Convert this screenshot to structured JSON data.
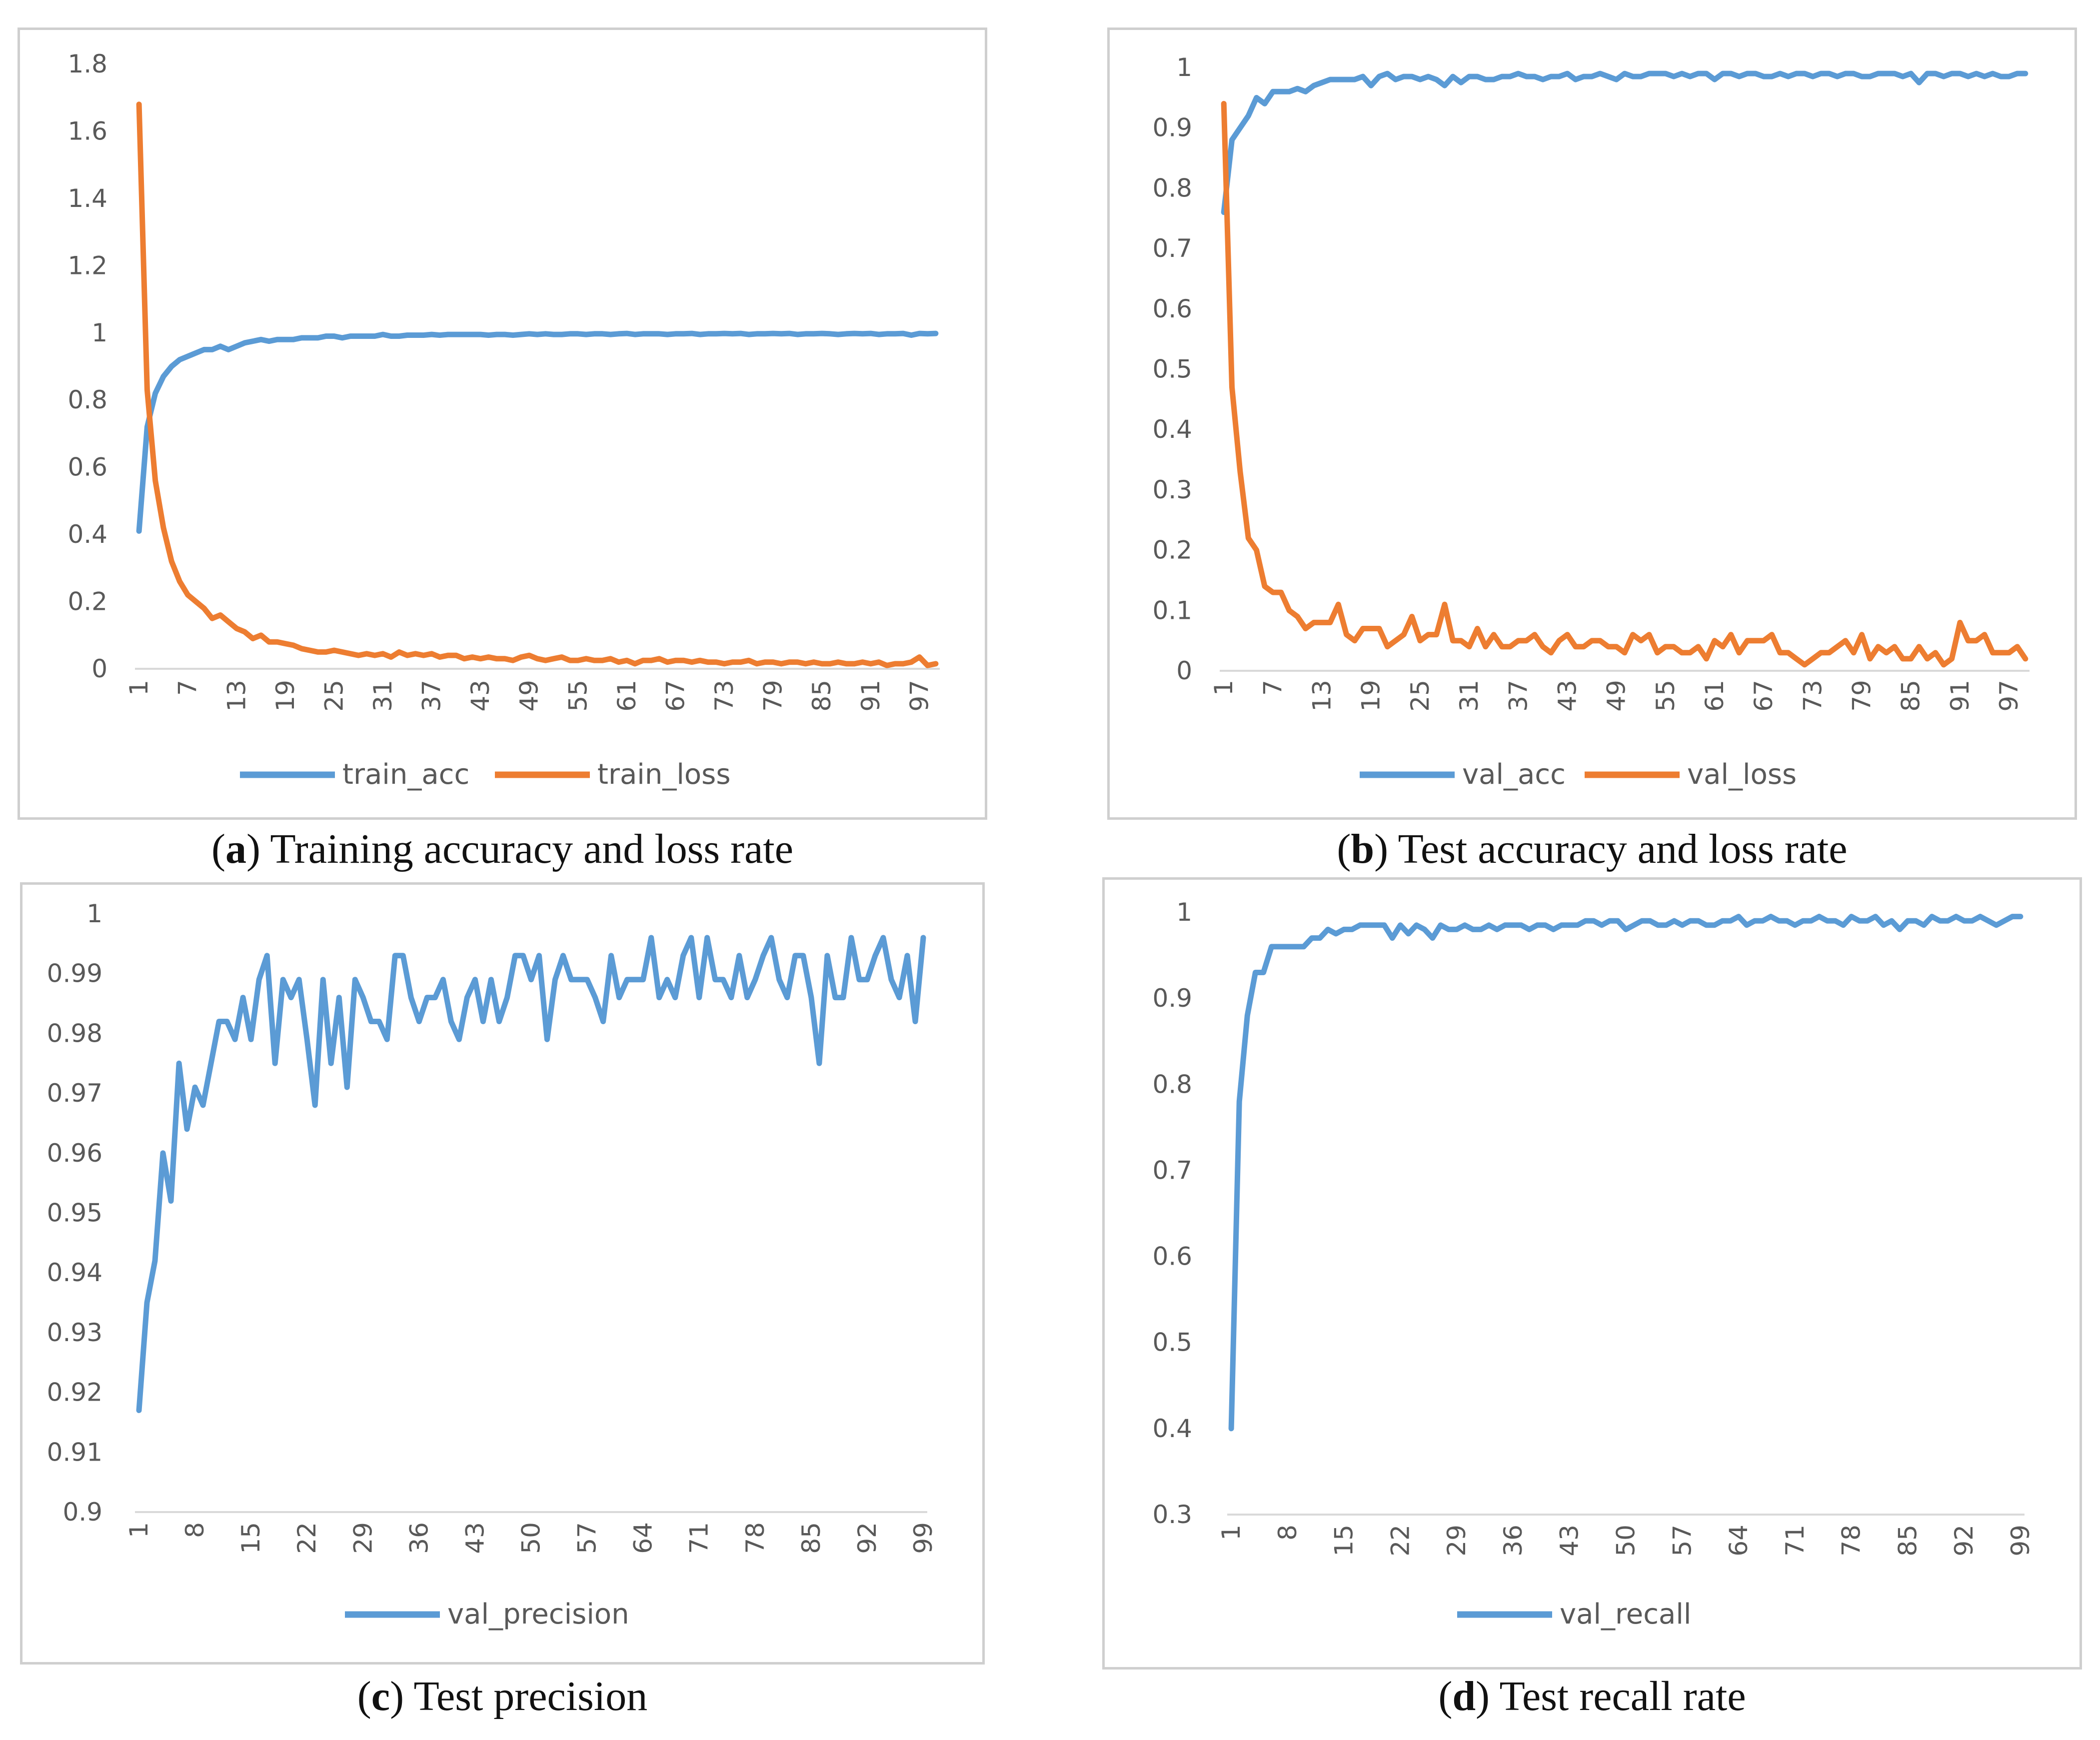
{
  "colors": {
    "blue": "#5b9bd5",
    "orange": "#ed7d31",
    "axis": "#d9d9d9",
    "text": "#595959"
  },
  "captions": {
    "a": {
      "letter": "a",
      "text": " Training accuracy and loss rate"
    },
    "b": {
      "letter": "b",
      "text": " Test accuracy and loss rate"
    },
    "c": {
      "letter": "c",
      "text": " Test precision"
    },
    "d": {
      "letter": "d",
      "text": " Test recall rate"
    }
  },
  "chart_data": [
    {
      "id": "a",
      "type": "line",
      "title": "Training accuracy and loss rate",
      "ylim": [
        0,
        1.8
      ],
      "yticks": [
        "0",
        "0.2",
        "0.4",
        "0.6",
        "0.8",
        "1",
        "1.2",
        "1.4",
        "1.6",
        "1.8"
      ],
      "xticks": [
        "1",
        "7",
        "13",
        "19",
        "25",
        "31",
        "37",
        "43",
        "49",
        "55",
        "61",
        "67",
        "73",
        "79",
        "85",
        "91",
        "97"
      ],
      "xtick_start": 1,
      "xtick_step": 6,
      "n": 99,
      "series": [
        {
          "name": "train_acc",
          "color": "blue",
          "values": [
            0.41,
            0.72,
            0.82,
            0.87,
            0.9,
            0.92,
            0.93,
            0.94,
            0.95,
            0.95,
            0.96,
            0.95,
            0.96,
            0.97,
            0.975,
            0.98,
            0.975,
            0.98,
            0.98,
            0.98,
            0.985,
            0.985,
            0.985,
            0.99,
            0.99,
            0.985,
            0.99,
            0.99,
            0.99,
            0.99,
            0.995,
            0.99,
            0.99,
            0.993,
            0.993,
            0.993,
            0.995,
            0.993,
            0.995,
            0.995,
            0.995,
            0.995,
            0.995,
            0.993,
            0.995,
            0.995,
            0.993,
            0.995,
            0.997,
            0.995,
            0.997,
            0.995,
            0.995,
            0.997,
            0.997,
            0.995,
            0.997,
            0.997,
            0.995,
            0.997,
            0.998,
            0.995,
            0.997,
            0.997,
            0.997,
            0.995,
            0.997,
            0.997,
            0.998,
            0.995,
            0.997,
            0.997,
            0.998,
            0.997,
            0.998,
            0.995,
            0.997,
            0.997,
            0.998,
            0.997,
            0.998,
            0.995,
            0.997,
            0.997,
            0.998,
            0.997,
            0.995,
            0.997,
            0.998,
            0.997,
            0.998,
            0.995,
            0.997,
            0.997,
            0.998,
            0.993,
            0.998,
            0.997,
            0.998
          ]
        },
        {
          "name": "train_loss",
          "color": "orange",
          "values": [
            1.68,
            0.83,
            0.56,
            0.42,
            0.32,
            0.26,
            0.22,
            0.2,
            0.18,
            0.15,
            0.16,
            0.14,
            0.12,
            0.11,
            0.09,
            0.1,
            0.08,
            0.08,
            0.075,
            0.07,
            0.06,
            0.055,
            0.05,
            0.05,
            0.055,
            0.05,
            0.045,
            0.04,
            0.045,
            0.04,
            0.045,
            0.035,
            0.05,
            0.04,
            0.045,
            0.04,
            0.045,
            0.035,
            0.04,
            0.04,
            0.03,
            0.035,
            0.03,
            0.035,
            0.03,
            0.03,
            0.025,
            0.035,
            0.04,
            0.03,
            0.025,
            0.03,
            0.035,
            0.025,
            0.025,
            0.03,
            0.025,
            0.025,
            0.03,
            0.02,
            0.025,
            0.015,
            0.025,
            0.025,
            0.03,
            0.02,
            0.025,
            0.025,
            0.02,
            0.025,
            0.02,
            0.02,
            0.015,
            0.02,
            0.02,
            0.025,
            0.015,
            0.02,
            0.02,
            0.015,
            0.02,
            0.02,
            0.015,
            0.02,
            0.015,
            0.015,
            0.02,
            0.015,
            0.015,
            0.02,
            0.015,
            0.02,
            0.01,
            0.015,
            0.015,
            0.02,
            0.035,
            0.01,
            0.015
          ]
        }
      ]
    },
    {
      "id": "b",
      "type": "line",
      "title": "Test accuracy and loss rate",
      "ylim": [
        0,
        1
      ],
      "yticks": [
        "0",
        "0.1",
        "0.2",
        "0.3",
        "0.4",
        "0.5",
        "0.6",
        "0.7",
        "0.8",
        "0.9",
        "1"
      ],
      "xticks": [
        "1",
        "7",
        "13",
        "19",
        "25",
        "31",
        "37",
        "43",
        "49",
        "55",
        "61",
        "67",
        "73",
        "79",
        "85",
        "91",
        "97"
      ],
      "xtick_start": 1,
      "xtick_step": 6,
      "n": 99,
      "series": [
        {
          "name": "val_acc",
          "color": "blue",
          "values": [
            0.76,
            0.88,
            0.9,
            0.92,
            0.95,
            0.94,
            0.96,
            0.96,
            0.96,
            0.965,
            0.96,
            0.97,
            0.975,
            0.98,
            0.98,
            0.98,
            0.98,
            0.985,
            0.97,
            0.985,
            0.99,
            0.98,
            0.985,
            0.985,
            0.98,
            0.985,
            0.98,
            0.97,
            0.985,
            0.975,
            0.985,
            0.985,
            0.98,
            0.98,
            0.985,
            0.985,
            0.99,
            0.985,
            0.985,
            0.98,
            0.985,
            0.985,
            0.99,
            0.98,
            0.985,
            0.985,
            0.99,
            0.985,
            0.98,
            0.99,
            0.985,
            0.985,
            0.99,
            0.99,
            0.99,
            0.985,
            0.99,
            0.985,
            0.99,
            0.99,
            0.98,
            0.99,
            0.99,
            0.985,
            0.99,
            0.99,
            0.985,
            0.985,
            0.99,
            0.985,
            0.99,
            0.99,
            0.985,
            0.99,
            0.99,
            0.985,
            0.99,
            0.99,
            0.985,
            0.985,
            0.99,
            0.99,
            0.99,
            0.985,
            0.99,
            0.975,
            0.99,
            0.99,
            0.985,
            0.99,
            0.99,
            0.985,
            0.99,
            0.985,
            0.99,
            0.985,
            0.985,
            0.99,
            0.99
          ]
        },
        {
          "name": "val_loss",
          "color": "orange",
          "values": [
            0.94,
            0.47,
            0.33,
            0.22,
            0.2,
            0.14,
            0.13,
            0.13,
            0.1,
            0.09,
            0.07,
            0.08,
            0.08,
            0.08,
            0.11,
            0.06,
            0.05,
            0.07,
            0.07,
            0.07,
            0.04,
            0.05,
            0.06,
            0.09,
            0.05,
            0.06,
            0.06,
            0.11,
            0.05,
            0.05,
            0.04,
            0.07,
            0.04,
            0.06,
            0.04,
            0.04,
            0.05,
            0.05,
            0.06,
            0.04,
            0.03,
            0.05,
            0.06,
            0.04,
            0.04,
            0.05,
            0.05,
            0.04,
            0.04,
            0.03,
            0.06,
            0.05,
            0.06,
            0.03,
            0.04,
            0.04,
            0.03,
            0.03,
            0.04,
            0.02,
            0.05,
            0.04,
            0.06,
            0.03,
            0.05,
            0.05,
            0.05,
            0.06,
            0.03,
            0.03,
            0.02,
            0.01,
            0.02,
            0.03,
            0.03,
            0.04,
            0.05,
            0.03,
            0.06,
            0.02,
            0.04,
            0.03,
            0.04,
            0.02,
            0.02,
            0.04,
            0.02,
            0.03,
            0.01,
            0.02,
            0.08,
            0.05,
            0.05,
            0.06,
            0.03,
            0.03,
            0.03,
            0.04,
            0.02
          ]
        }
      ]
    },
    {
      "id": "c",
      "type": "line",
      "title": "Test precision",
      "ylim": [
        0.9,
        1
      ],
      "yticks": [
        "0.9",
        "0.91",
        "0.92",
        "0.93",
        "0.94",
        "0.95",
        "0.96",
        "0.97",
        "0.98",
        "0.99",
        "1"
      ],
      "xticks": [
        "1",
        "8",
        "15",
        "22",
        "29",
        "36",
        "43",
        "50",
        "57",
        "64",
        "71",
        "78",
        "85",
        "92",
        "99"
      ],
      "xtick_start": 1,
      "xtick_step": 7,
      "n": 99,
      "series": [
        {
          "name": "val_precision",
          "color": "blue",
          "values": [
            0.917,
            0.935,
            0.942,
            0.96,
            0.952,
            0.975,
            0.964,
            0.971,
            0.968,
            0.975,
            0.982,
            0.982,
            0.979,
            0.986,
            0.979,
            0.989,
            0.993,
            0.975,
            0.989,
            0.986,
            0.989,
            0.979,
            0.968,
            0.989,
            0.975,
            0.986,
            0.971,
            0.989,
            0.986,
            0.982,
            0.982,
            0.979,
            0.993,
            0.993,
            0.986,
            0.982,
            0.986,
            0.986,
            0.989,
            0.982,
            0.979,
            0.986,
            0.989,
            0.982,
            0.989,
            0.982,
            0.986,
            0.993,
            0.993,
            0.989,
            0.993,
            0.979,
            0.989,
            0.993,
            0.989,
            0.989,
            0.989,
            0.986,
            0.982,
            0.993,
            0.986,
            0.989,
            0.989,
            0.989,
            0.996,
            0.986,
            0.989,
            0.986,
            0.993,
            0.996,
            0.986,
            0.996,
            0.989,
            0.989,
            0.986,
            0.993,
            0.986,
            0.989,
            0.993,
            0.996,
            0.989,
            0.986,
            0.993,
            0.993,
            0.986,
            0.975,
            0.993,
            0.986,
            0.986,
            0.996,
            0.989,
            0.989,
            0.993,
            0.996,
            0.989,
            0.986,
            0.993,
            0.982,
            0.996
          ]
        }
      ]
    },
    {
      "id": "d",
      "type": "line",
      "title": "Test recall rate",
      "ylim": [
        0.3,
        1
      ],
      "yticks": [
        "0.3",
        "0.4",
        "0.5",
        "0.6",
        "0.7",
        "0.8",
        "0.9",
        "1"
      ],
      "xticks": [
        "1",
        "8",
        "15",
        "22",
        "29",
        "36",
        "43",
        "50",
        "57",
        "64",
        "71",
        "78",
        "85",
        "92",
        "99"
      ],
      "xtick_start": 1,
      "xtick_step": 7,
      "n": 99,
      "series": [
        {
          "name": "val_recall",
          "color": "blue",
          "values": [
            0.4,
            0.78,
            0.88,
            0.93,
            0.93,
            0.96,
            0.96,
            0.96,
            0.96,
            0.96,
            0.97,
            0.97,
            0.98,
            0.975,
            0.98,
            0.98,
            0.985,
            0.985,
            0.985,
            0.985,
            0.97,
            0.985,
            0.975,
            0.985,
            0.98,
            0.97,
            0.985,
            0.98,
            0.98,
            0.985,
            0.98,
            0.98,
            0.985,
            0.98,
            0.985,
            0.985,
            0.985,
            0.98,
            0.985,
            0.985,
            0.98,
            0.985,
            0.985,
            0.985,
            0.99,
            0.99,
            0.985,
            0.99,
            0.99,
            0.98,
            0.985,
            0.99,
            0.99,
            0.985,
            0.985,
            0.99,
            0.985,
            0.99,
            0.99,
            0.985,
            0.985,
            0.99,
            0.99,
            0.995,
            0.985,
            0.99,
            0.99,
            0.995,
            0.99,
            0.99,
            0.985,
            0.99,
            0.99,
            0.995,
            0.99,
            0.99,
            0.985,
            0.995,
            0.99,
            0.99,
            0.995,
            0.985,
            0.99,
            0.98,
            0.99,
            0.99,
            0.985,
            0.995,
            0.99,
            0.99,
            0.995,
            0.99,
            0.99,
            0.995,
            0.99,
            0.985,
            0.99,
            0.995,
            0.995
          ]
        }
      ]
    }
  ]
}
